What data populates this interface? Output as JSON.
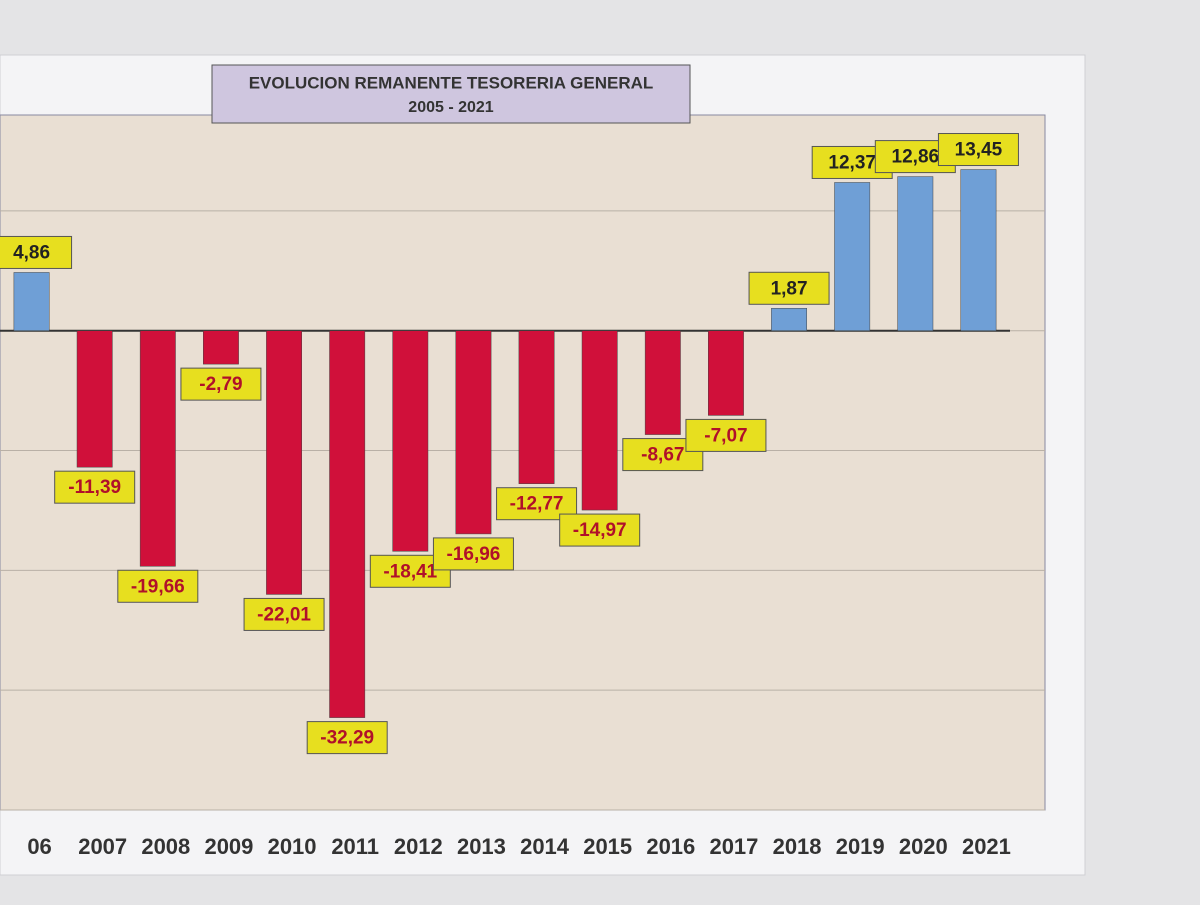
{
  "chart_data": {
    "type": "bar",
    "title": "EVOLUCION REMANENTE TESORERIA GENERAL",
    "subtitle": "2005 - 2021",
    "categories": [
      "06",
      "2007",
      "2008",
      "2009",
      "2010",
      "2011",
      "2012",
      "2013",
      "2014",
      "2015",
      "2016",
      "2017",
      "2018",
      "2019",
      "2020",
      "2021"
    ],
    "values": [
      4.86,
      -11.39,
      -19.66,
      -2.79,
      -22.01,
      -32.29,
      -18.41,
      -16.96,
      -12.77,
      -14.97,
      -8.67,
      -7.07,
      1.87,
      12.37,
      12.86,
      13.45
    ],
    "value_labels": [
      "4,86",
      "-11,39",
      "-19,66",
      "-2,79",
      "-22,01",
      "-32,29",
      "-18,41",
      "-16,96",
      "-12,77",
      "-14,97",
      "-8,67",
      "-7,07",
      "1,87",
      "12,37",
      "12,86",
      "13,45"
    ],
    "positive_color": "#6f9fd6",
    "negative_color": "#d0103a",
    "ylim": [
      -40,
      18
    ],
    "yticks": [
      -40,
      -30,
      -20,
      -10,
      0,
      10
    ],
    "grid": true
  }
}
